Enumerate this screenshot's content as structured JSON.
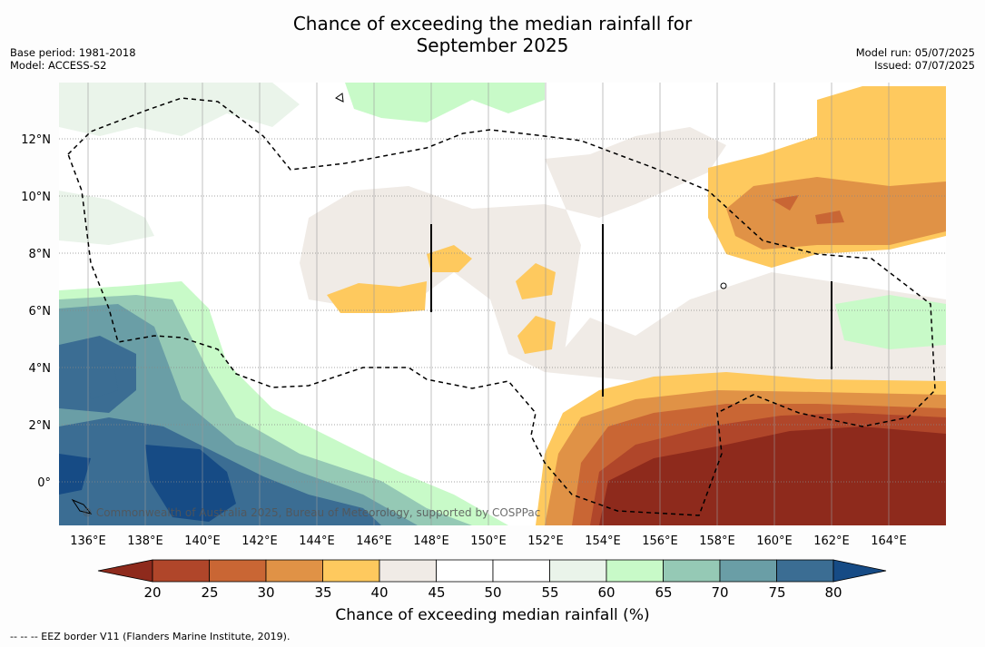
{
  "title_line1": "Chance of exceeding the median rainfall for",
  "title_line2": "September 2025",
  "base_period": "Base period: 1981-2018",
  "model": "Model: ACCESS-S2",
  "model_run": "Model run: 05/07/2025",
  "issued": "Issued: 07/07/2025",
  "copyright": "© Commonwealth of Australia 2025, Bureau of Meteorology, supported by COSPPac",
  "colorbar_title": "Chance of exceeding median rainfall (%)",
  "footer": "--  --  -- EEZ border V11 (Flanders Marine Institute, 2019).",
  "lat_labels": [
    "12°N",
    "10°N",
    "8°N",
    "6°N",
    "4°N",
    "2°N",
    "0°"
  ],
  "lon_labels": [
    "136°E",
    "138°E",
    "140°E",
    "142°E",
    "144°E",
    "146°E",
    "148°E",
    "150°E",
    "152°E",
    "154°E",
    "156°E",
    "158°E",
    "160°E",
    "162°E",
    "164°E"
  ],
  "colorbar_ticks": [
    "20",
    "25",
    "30",
    "35",
    "40",
    "45",
    "50",
    "55",
    "60",
    "65",
    "70",
    "75",
    "80"
  ],
  "colorbar_colors": [
    "#8e2a1c",
    "#b0462a",
    "#c96634",
    "#e09246",
    "#fec95e",
    "#f0ebe6",
    "#ffffff",
    "#ffffff",
    "#eaf4ea",
    "#c8fac8",
    "#95c9b5",
    "#6a9ea6",
    "#3b6d93",
    "#164b85"
  ]
}
